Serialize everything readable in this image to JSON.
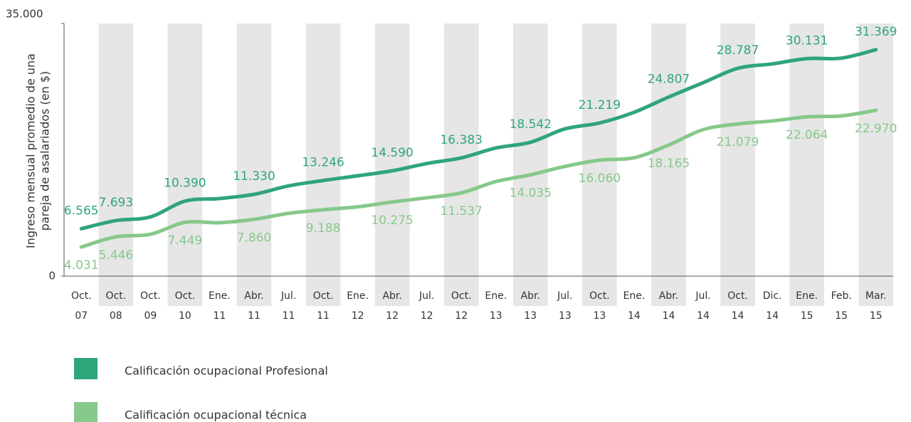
{
  "chart_data": {
    "type": "line",
    "ylabel": [
      "Ingreso mensual promedio de una",
      "pareja de asalariados (en $)"
    ],
    "categories": [
      [
        "Oct.",
        "07"
      ],
      [
        "Oct.",
        "08"
      ],
      [
        "Oct.",
        "09"
      ],
      [
        "Oct.",
        "10"
      ],
      [
        "Ene.",
        "11"
      ],
      [
        "Abr.",
        "11"
      ],
      [
        "Jul.",
        "11"
      ],
      [
        "Oct.",
        "11"
      ],
      [
        "Ene.",
        "12"
      ],
      [
        "Abr.",
        "12"
      ],
      [
        "Jul.",
        "12"
      ],
      [
        "Oct.",
        "12"
      ],
      [
        "Ene.",
        "13"
      ],
      [
        "Abr.",
        "13"
      ],
      [
        "Jul.",
        "13"
      ],
      [
        "Oct.",
        "13"
      ],
      [
        "Ene.",
        "14"
      ],
      [
        "Abr.",
        "14"
      ],
      [
        "Jul.",
        "14"
      ],
      [
        "Oct.",
        "14"
      ],
      [
        "Dic.",
        "14"
      ],
      [
        "Ene.",
        "15"
      ],
      [
        "Feb.",
        "15"
      ],
      [
        "Mar.",
        "15"
      ]
    ],
    "series": [
      {
        "name": "Calificación ocupacional Profesional",
        "color": "#2fa57a",
        "values": [
          6565,
          7693,
          8200,
          10390,
          10750,
          11330,
          12500,
          13246,
          13900,
          14590,
          15600,
          16383,
          17750,
          18542,
          20400,
          21219,
          22700,
          24807,
          26800,
          28787,
          29400,
          30131,
          30200,
          31369
        ],
        "value_labels": [
          "6.565",
          "7.693",
          null,
          "10.390",
          null,
          "11.330",
          null,
          "13.246",
          null,
          "14.590",
          null,
          "16.383",
          null,
          "18.542",
          null,
          "21.219",
          null,
          "24.807",
          null,
          "28.787",
          null,
          "30.131",
          null,
          "31.369"
        ]
      },
      {
        "name": "Calificación ocupacional técnica",
        "color": "#86c98a",
        "values": [
          4031,
          5446,
          5800,
          7449,
          7400,
          7860,
          8700,
          9188,
          9600,
          10275,
          10850,
          11537,
          13100,
          14035,
          15200,
          16060,
          16400,
          18165,
          20300,
          21079,
          21500,
          22064,
          22200,
          22970
        ],
        "value_labels": [
          "4.031",
          "5.446",
          null,
          "7.449",
          null,
          "7.860",
          null,
          "9.188",
          null,
          "10.275",
          null,
          "11.537",
          null,
          "14.035",
          null,
          "16.060",
          null,
          "18.165",
          null,
          "21.079",
          null,
          "22.064",
          null,
          "22.970"
        ]
      }
    ],
    "ylim": [
      0,
      35000
    ],
    "yticks": [
      0,
      {
        "value": 35000,
        "label": "35.000"
      }
    ],
    "stripes": true
  }
}
